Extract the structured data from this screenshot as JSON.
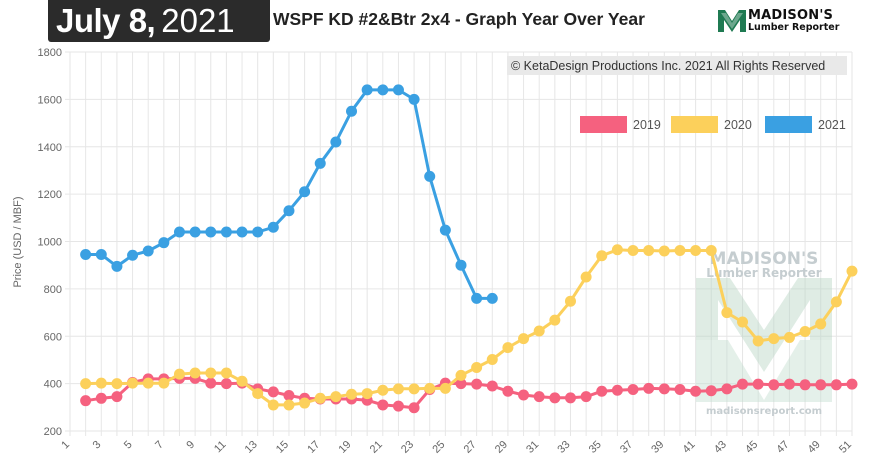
{
  "header": {
    "date_month_day": "July 8,",
    "date_year": "2021",
    "title": "WSPF KD #2&Btr 2x4 - Graph Year Over Year",
    "logo_name": "MADISON'S",
    "logo_sub": "Lumber Reporter"
  },
  "copyright": "© KetaDesign Productions Inc. 2021 All Rights Reserved",
  "watermark": {
    "name": "MADISON'S",
    "sub": "Lumber Reporter",
    "url": "madisonsreport.com"
  },
  "colors": {
    "2019": "#f5617f",
    "2020": "#fcd05b",
    "2021": "#3aa0e2",
    "grid": "#e6e6e6"
  },
  "chart_data": {
    "type": "line",
    "title": "WSPF KD #2&Btr 2x4 - Graph Year Over Year",
    "xlabel": "",
    "ylabel": "Price (USD / MBF)",
    "ylim": [
      200,
      1800
    ],
    "yticks": [
      200,
      400,
      600,
      800,
      1000,
      1200,
      1400,
      1600,
      1800
    ],
    "xlim": [
      1,
      51
    ],
    "xticks": [
      1,
      3,
      5,
      7,
      9,
      11,
      13,
      15,
      17,
      19,
      21,
      23,
      25,
      27,
      29,
      31,
      33,
      35,
      37,
      39,
      41,
      43,
      45,
      47,
      49,
      51
    ],
    "grid": true,
    "legend_position": "top-right",
    "series": [
      {
        "name": "2019",
        "x": [
          2,
          3,
          4,
          5,
          6,
          7,
          8,
          9,
          10,
          11,
          12,
          13,
          14,
          15,
          16,
          17,
          18,
          19,
          20,
          21,
          22,
          23,
          24,
          25,
          26,
          27,
          28,
          29,
          30,
          31,
          32,
          33,
          34,
          35,
          36,
          37,
          38,
          39,
          40,
          41,
          42,
          43,
          44,
          45,
          46,
          47,
          48,
          49,
          50,
          51
        ],
        "values": [
          328,
          338,
          345,
          405,
          420,
          420,
          422,
          422,
          402,
          400,
          402,
          378,
          365,
          350,
          338,
          335,
          335,
          335,
          330,
          310,
          305,
          298,
          375,
          402,
          400,
          398,
          390,
          368,
          352,
          345,
          340,
          340,
          345,
          368,
          372,
          375,
          380,
          378,
          375,
          368,
          370,
          378,
          398,
          398,
          395,
          398,
          395,
          395,
          395,
          398
        ]
      },
      {
        "name": "2020",
        "x": [
          2,
          3,
          4,
          5,
          6,
          7,
          8,
          9,
          10,
          11,
          12,
          13,
          14,
          15,
          16,
          17,
          18,
          19,
          20,
          21,
          22,
          23,
          24,
          25,
          26,
          27,
          28,
          29,
          30,
          31,
          32,
          33,
          34,
          35,
          36,
          37,
          38,
          39,
          40,
          41,
          42,
          43,
          44,
          45,
          46,
          47,
          48,
          49,
          50,
          51
        ],
        "values": [
          400,
          402,
          400,
          402,
          402,
          402,
          440,
          445,
          445,
          445,
          410,
          358,
          310,
          310,
          318,
          338,
          345,
          355,
          358,
          372,
          378,
          378,
          380,
          380,
          435,
          468,
          502,
          552,
          590,
          622,
          668,
          748,
          850,
          940,
          965,
          962,
          962,
          960,
          962,
          962,
          962,
          700,
          660,
          580,
          590,
          595,
          620,
          652,
          745,
          875
        ]
      },
      {
        "name": "2021",
        "x": [
          2,
          3,
          4,
          5,
          6,
          7,
          8,
          9,
          10,
          11,
          12,
          13,
          14,
          15,
          16,
          17,
          18,
          19,
          20,
          21,
          22,
          23,
          24,
          25,
          26,
          27,
          28
        ],
        "values": [
          945,
          945,
          895,
          942,
          960,
          995,
          1040,
          1040,
          1040,
          1040,
          1040,
          1040,
          1060,
          1130,
          1210,
          1330,
          1420,
          1550,
          1640,
          1640,
          1640,
          1600,
          1275,
          1048,
          900,
          760,
          760
        ]
      }
    ]
  }
}
